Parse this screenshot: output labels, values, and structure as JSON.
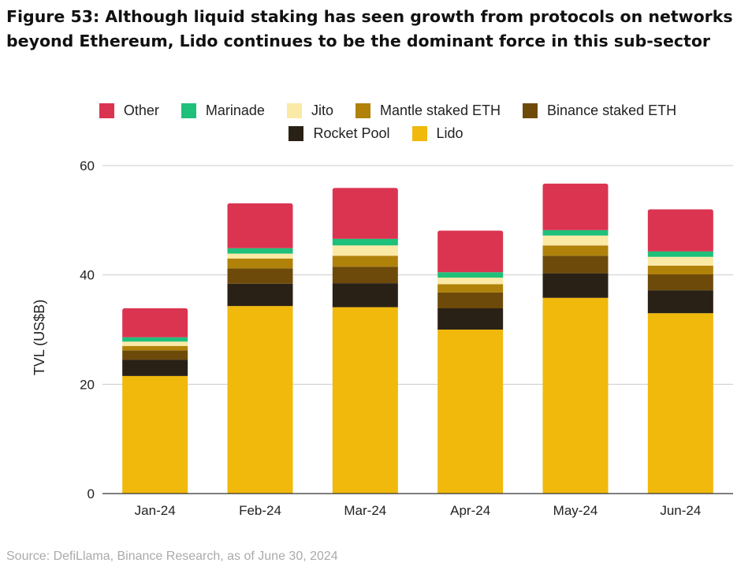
{
  "title": "Figure 53: Although liquid staking has seen growth from protocols on networks beyond Ethereum, Lido continues to be the dominant force in this sub-sector",
  "source": "Source: DefiLlama, Binance Research, as of June 30, 2024",
  "legend": {
    "row1": [
      "Other",
      "Marinade",
      "Jito",
      "Mantle staked ETH",
      "Binance staked ETH"
    ],
    "row2": [
      "Rocket Pool",
      "Lido"
    ]
  },
  "colors": {
    "Lido": "#f0b90b",
    "Rocket Pool": "#2a2116",
    "Binance staked ETH": "#6e4a0a",
    "Mantle staked ETH": "#b0820a",
    "Jito": "#fbe9a6",
    "Marinade": "#1fc07a",
    "Other": "#db3451",
    "grid": "#cccccc",
    "axis": "#333333"
  },
  "chart_data": {
    "type": "bar",
    "stacked": true,
    "ylabel": "TVL (US$B)",
    "xlabel": "",
    "ylim": [
      0,
      60
    ],
    "yticks": [
      "0",
      "20",
      "40",
      "60"
    ],
    "grid": true,
    "legend_position": "top",
    "categories": [
      "Jan-24",
      "Feb-24",
      "Mar-24",
      "Apr-24",
      "May-24",
      "Jun-24"
    ],
    "series": [
      {
        "name": "Lido",
        "values": [
          21.5,
          34.3,
          34.1,
          30.0,
          35.8,
          33.0
        ]
      },
      {
        "name": "Rocket Pool",
        "values": [
          3.0,
          4.1,
          4.4,
          3.9,
          4.5,
          4.2
        ]
      },
      {
        "name": "Binance staked ETH",
        "values": [
          1.7,
          2.8,
          3.0,
          2.9,
          3.2,
          2.9
        ]
      },
      {
        "name": "Mantle staked ETH",
        "values": [
          0.8,
          1.8,
          2.0,
          1.5,
          1.9,
          1.6
        ]
      },
      {
        "name": "Jito",
        "values": [
          0.8,
          0.9,
          1.9,
          1.2,
          1.8,
          1.6
        ]
      },
      {
        "name": "Marinade",
        "values": [
          0.8,
          1.0,
          1.2,
          1.0,
          1.0,
          1.0
        ]
      },
      {
        "name": "Other",
        "values": [
          5.3,
          8.2,
          9.3,
          7.6,
          8.5,
          7.7
        ]
      }
    ]
  }
}
